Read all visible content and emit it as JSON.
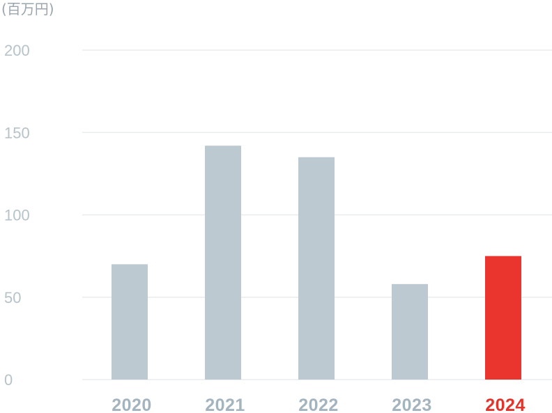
{
  "chart_data": {
    "type": "bar",
    "unit_label": "(百万円)",
    "categories": [
      "2020",
      "2021",
      "2022",
      "2023",
      "2024"
    ],
    "values": [
      70,
      142,
      135,
      58,
      75
    ],
    "highlight_category": "2024",
    "ylim": [
      0,
      200
    ],
    "yticks": [
      "0",
      "50",
      "100",
      "150",
      "200"
    ],
    "grid": true,
    "colors": {
      "bar": "#bcc9d1",
      "highlight_bar": "#e9352e",
      "x_label": "#a4b4bf",
      "highlight_x_label": "#e3342c",
      "grid": "#e9ecee",
      "y_label": "#b7c2c9"
    }
  }
}
